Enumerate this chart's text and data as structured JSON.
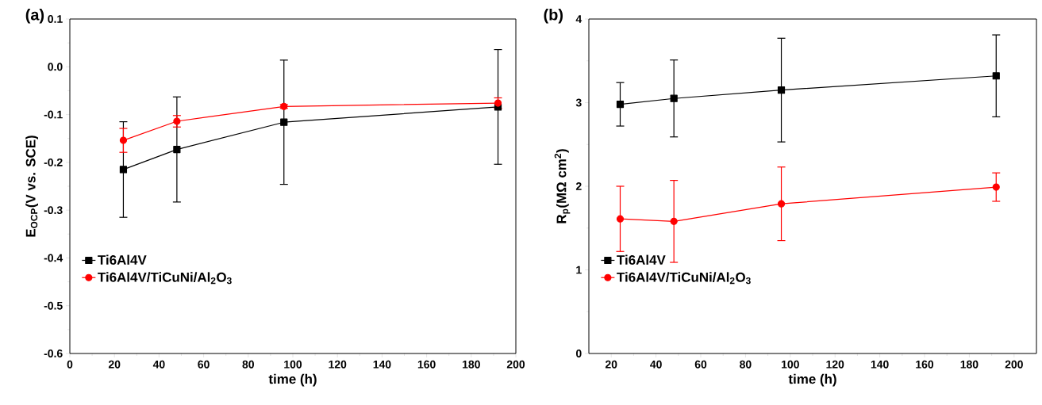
{
  "chart_data": [
    {
      "type": "line",
      "xlabel": "time (h)",
      "ylabel": "E$_{OCP}$(V vs. SCE)",
      "annotations": [
        "(a)"
      ],
      "x": [
        24,
        48,
        96,
        192
      ],
      "xlim": [
        0,
        200
      ],
      "xticks": [
        0,
        20,
        40,
        60,
        80,
        100,
        120,
        140,
        160,
        180,
        200
      ],
      "ylim": [
        -0.6,
        0.1
      ],
      "yticks": [
        {
          "value": -0.6,
          "label": "-0.6"
        },
        {
          "value": -0.5,
          "label": "-0.5"
        },
        {
          "value": -0.4,
          "label": "-0.4"
        },
        {
          "value": -0.3,
          "label": "-0.3"
        },
        {
          "value": -0.2,
          "label": "-0.2"
        },
        {
          "value": -0.1,
          "label": "-0.1"
        },
        {
          "value": 0,
          "label": "0.0"
        },
        {
          "value": 0.1,
          "label": "0.1"
        }
      ],
      "legend": "bottom left",
      "grid": false,
      "line_style": "solid",
      "series": [
        {
          "name": "Ti6Al4V",
          "color": "#000000",
          "marker": "square",
          "values": [
            -0.215,
            -0.173,
            -0.116,
            -0.084
          ],
          "errors": [
            0.1,
            0.11,
            0.13,
            0.12
          ]
        },
        {
          "name": "Ti6Al4V/TiCuNi/Al$_{2}$O$_{3}$",
          "color": "#ff0000",
          "marker": "circle",
          "values": [
            -0.154,
            -0.114,
            -0.083,
            -0.076
          ],
          "errors": [
            0.025,
            0.012,
            0.004,
            0.011
          ]
        }
      ]
    },
    {
      "type": "line",
      "xlabel": "time (h)",
      "ylabel": "R$_{p}$(MΩ cm$^{2}$)",
      "annotations": [
        "(b)"
      ],
      "x": [
        24,
        48,
        96,
        192
      ],
      "xlim": [
        10,
        210
      ],
      "xticks": [
        20,
        40,
        60,
        80,
        100,
        120,
        140,
        160,
        180,
        200
      ],
      "ylim": [
        0,
        4
      ],
      "yticks": [
        0,
        1,
        2,
        3,
        4
      ],
      "legend": "bottom left",
      "grid": false,
      "line_style": "solid",
      "series": [
        {
          "name": "Ti6Al4V",
          "color": "#000000",
          "marker": "square",
          "values": [
            2.98,
            3.05,
            3.15,
            3.32
          ],
          "errors": [
            0.26,
            0.46,
            0.62,
            0.49
          ]
        },
        {
          "name": "Ti6Al4V/TiCuNi/Al$_{2}$O$_{3}$",
          "color": "#ff0000",
          "marker": "circle",
          "values": [
            1.61,
            1.58,
            1.79,
            1.99
          ],
          "errors": [
            0.39,
            0.49,
            0.44,
            0.17
          ]
        }
      ]
    }
  ]
}
